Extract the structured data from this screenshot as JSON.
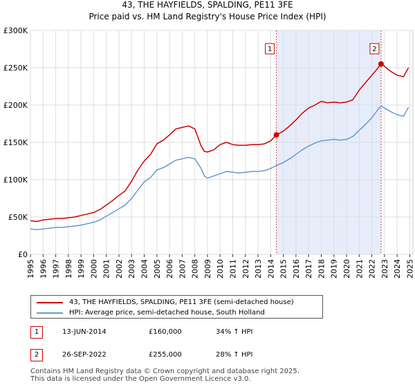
{
  "title": "43, THE HAYFIELDS, SPALDING, PE11 3FE",
  "subtitle": "Price paid vs. HM Land Registry's House Price Index (HPI)",
  "legend": {
    "property_label": "43, THE HAYFIELDS, SPALDING, PE11 3FE (semi-detached house)",
    "hpi_label": "HPI: Average price, semi-detached house, South Holland"
  },
  "transactions": [
    {
      "num": "1",
      "date": "13-JUN-2014",
      "price": "£160,000",
      "hpi": "34% ↑ HPI"
    },
    {
      "num": "2",
      "date": "26-SEP-2022",
      "price": "£255,000",
      "hpi": "28% ↑ HPI"
    }
  ],
  "footer": {
    "line1": "Contains HM Land Registry data © Crown copyright and database right 2025.",
    "line2": "This data is licensed under the Open Government Licence v3.0."
  },
  "colors": {
    "property": "#cc0000",
    "hpi": "#6699cc",
    "grid": "#dddddd",
    "shade": "#e6ecfa",
    "marker_line": "#dd4444"
  },
  "chart_data": {
    "type": "line",
    "xlim": [
      1995,
      2025.25
    ],
    "ylim": [
      0,
      300000
    ],
    "y_ticks": [
      {
        "value": 0,
        "label": "£0"
      },
      {
        "value": 50000,
        "label": "£50K"
      },
      {
        "value": 100000,
        "label": "£100K"
      },
      {
        "value": 150000,
        "label": "£150K"
      },
      {
        "value": 200000,
        "label": "£200K"
      },
      {
        "value": 250000,
        "label": "£250K"
      },
      {
        "value": 300000,
        "label": "£300K"
      }
    ],
    "x_ticks": [
      "1995",
      "1996",
      "1997",
      "1998",
      "1999",
      "2000",
      "2001",
      "2002",
      "2003",
      "2004",
      "2005",
      "2006",
      "2007",
      "2008",
      "2009",
      "2010",
      "2011",
      "2012",
      "2013",
      "2014",
      "2015",
      "2016",
      "2017",
      "2018",
      "2019",
      "2020",
      "2021",
      "2022",
      "2023",
      "2024",
      "2025"
    ],
    "shaded_range": [
      2014.45,
      2022.73
    ],
    "markers": [
      {
        "label": "1",
        "x": 2014.45,
        "y": 160000
      },
      {
        "label": "2",
        "x": 2022.73,
        "y": 255000
      }
    ],
    "series": [
      {
        "name": "43, THE HAYFIELDS, SPALDING, PE11 3FE (semi-detached house)",
        "color": "#cc0000",
        "x": [
          1995.0,
          1995.5,
          1996.0,
          1996.5,
          1997.0,
          1997.5,
          1998.0,
          1998.5,
          1999.0,
          1999.5,
          2000.0,
          2000.5,
          2001.0,
          2001.5,
          2002.0,
          2002.5,
          2003.0,
          2003.5,
          2004.0,
          2004.5,
          2005.0,
          2005.5,
          2006.0,
          2006.5,
          2007.0,
          2007.5,
          2008.0,
          2008.5,
          2008.75,
          2009.0,
          2009.5,
          2010.0,
          2010.5,
          2011.0,
          2011.5,
          2012.0,
          2012.5,
          2013.0,
          2013.5,
          2014.0,
          2014.45,
          2015.0,
          2015.5,
          2016.0,
          2016.5,
          2017.0,
          2017.5,
          2018.0,
          2018.5,
          2019.0,
          2019.5,
          2020.0,
          2020.5,
          2021.0,
          2021.5,
          2022.0,
          2022.4,
          2022.73,
          2023.0,
          2023.5,
          2024.0,
          2024.5,
          2024.9
        ],
        "y": [
          45000,
          44000,
          46000,
          47000,
          48000,
          48000,
          49000,
          50000,
          52000,
          54000,
          56000,
          60000,
          66000,
          72000,
          79000,
          85000,
          98000,
          113000,
          125000,
          134000,
          148000,
          153000,
          160000,
          168000,
          170000,
          172000,
          168000,
          145000,
          138000,
          137000,
          140000,
          147000,
          150000,
          147000,
          146000,
          146000,
          147000,
          147000,
          148000,
          152000,
          160000,
          165000,
          172000,
          180000,
          189000,
          196000,
          200000,
          205000,
          203000,
          204000,
          203000,
          204000,
          207000,
          220000,
          230000,
          240000,
          248000,
          255000,
          252000,
          245000,
          240000,
          238000,
          250000
        ]
      },
      {
        "name": "HPI: Average price, semi-detached house, South Holland",
        "color": "#6699cc",
        "x": [
          1995.0,
          1995.5,
          1996.0,
          1996.5,
          1997.0,
          1997.5,
          1998.0,
          1998.5,
          1999.0,
          1999.5,
          2000.0,
          2000.5,
          2001.0,
          2001.5,
          2002.0,
          2002.5,
          2003.0,
          2003.5,
          2004.0,
          2004.5,
          2005.0,
          2005.5,
          2006.0,
          2006.5,
          2007.0,
          2007.5,
          2008.0,
          2008.5,
          2008.75,
          2009.0,
          2009.5,
          2010.0,
          2010.5,
          2011.0,
          2011.5,
          2012.0,
          2012.5,
          2013.0,
          2013.5,
          2014.0,
          2014.45,
          2015.0,
          2015.5,
          2016.0,
          2016.5,
          2017.0,
          2017.5,
          2018.0,
          2018.5,
          2019.0,
          2019.5,
          2020.0,
          2020.5,
          2021.0,
          2021.5,
          2022.0,
          2022.4,
          2022.73,
          2023.0,
          2023.5,
          2024.0,
          2024.5,
          2024.9
        ],
        "y": [
          34000,
          33000,
          34000,
          35000,
          36000,
          36000,
          37000,
          38000,
          39000,
          41000,
          43000,
          46000,
          51000,
          56000,
          61000,
          66000,
          75000,
          86000,
          97000,
          103000,
          113000,
          116000,
          121000,
          126000,
          128000,
          130000,
          128000,
          115000,
          105000,
          102000,
          105000,
          108000,
          111000,
          110000,
          109000,
          110000,
          111000,
          111000,
          112000,
          115000,
          119000,
          123000,
          128000,
          134000,
          140000,
          145000,
          149000,
          152000,
          153000,
          154000,
          153000,
          154000,
          158000,
          166000,
          174000,
          183000,
          192000,
          199000,
          196000,
          191000,
          187000,
          185000,
          197000
        ]
      }
    ]
  }
}
